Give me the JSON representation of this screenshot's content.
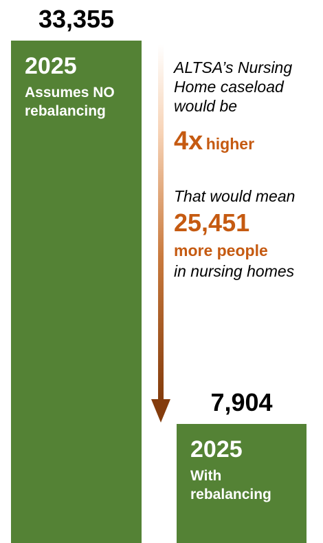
{
  "chart_data": {
    "type": "bar",
    "categories": [
      "2025 Assumes NO rebalancing",
      "2025 With rebalancing"
    ],
    "values": [
      33355,
      7904
    ],
    "value_labels": [
      "33,355",
      "7,904"
    ],
    "bars": [
      {
        "year": "2025",
        "subtitle": "Assumes NO\nrebalancing"
      },
      {
        "year": "2025",
        "subtitle": "With\nrebalancing"
      }
    ],
    "ylim": [
      0,
      33355
    ],
    "grid": false,
    "legend": "none",
    "colors": {
      "bar": "#548235",
      "accent": "#c55a11",
      "arrow_dark": "#843c0c"
    }
  },
  "annotation": {
    "intro": "ALTSA’s Nursing\nHome caseload\nwould be",
    "multiplier": "4x",
    "multiplier_suffix": "higher",
    "lead": "That would mean",
    "difference": "25,451",
    "difference_label": "more people",
    "tail": "in nursing homes"
  }
}
